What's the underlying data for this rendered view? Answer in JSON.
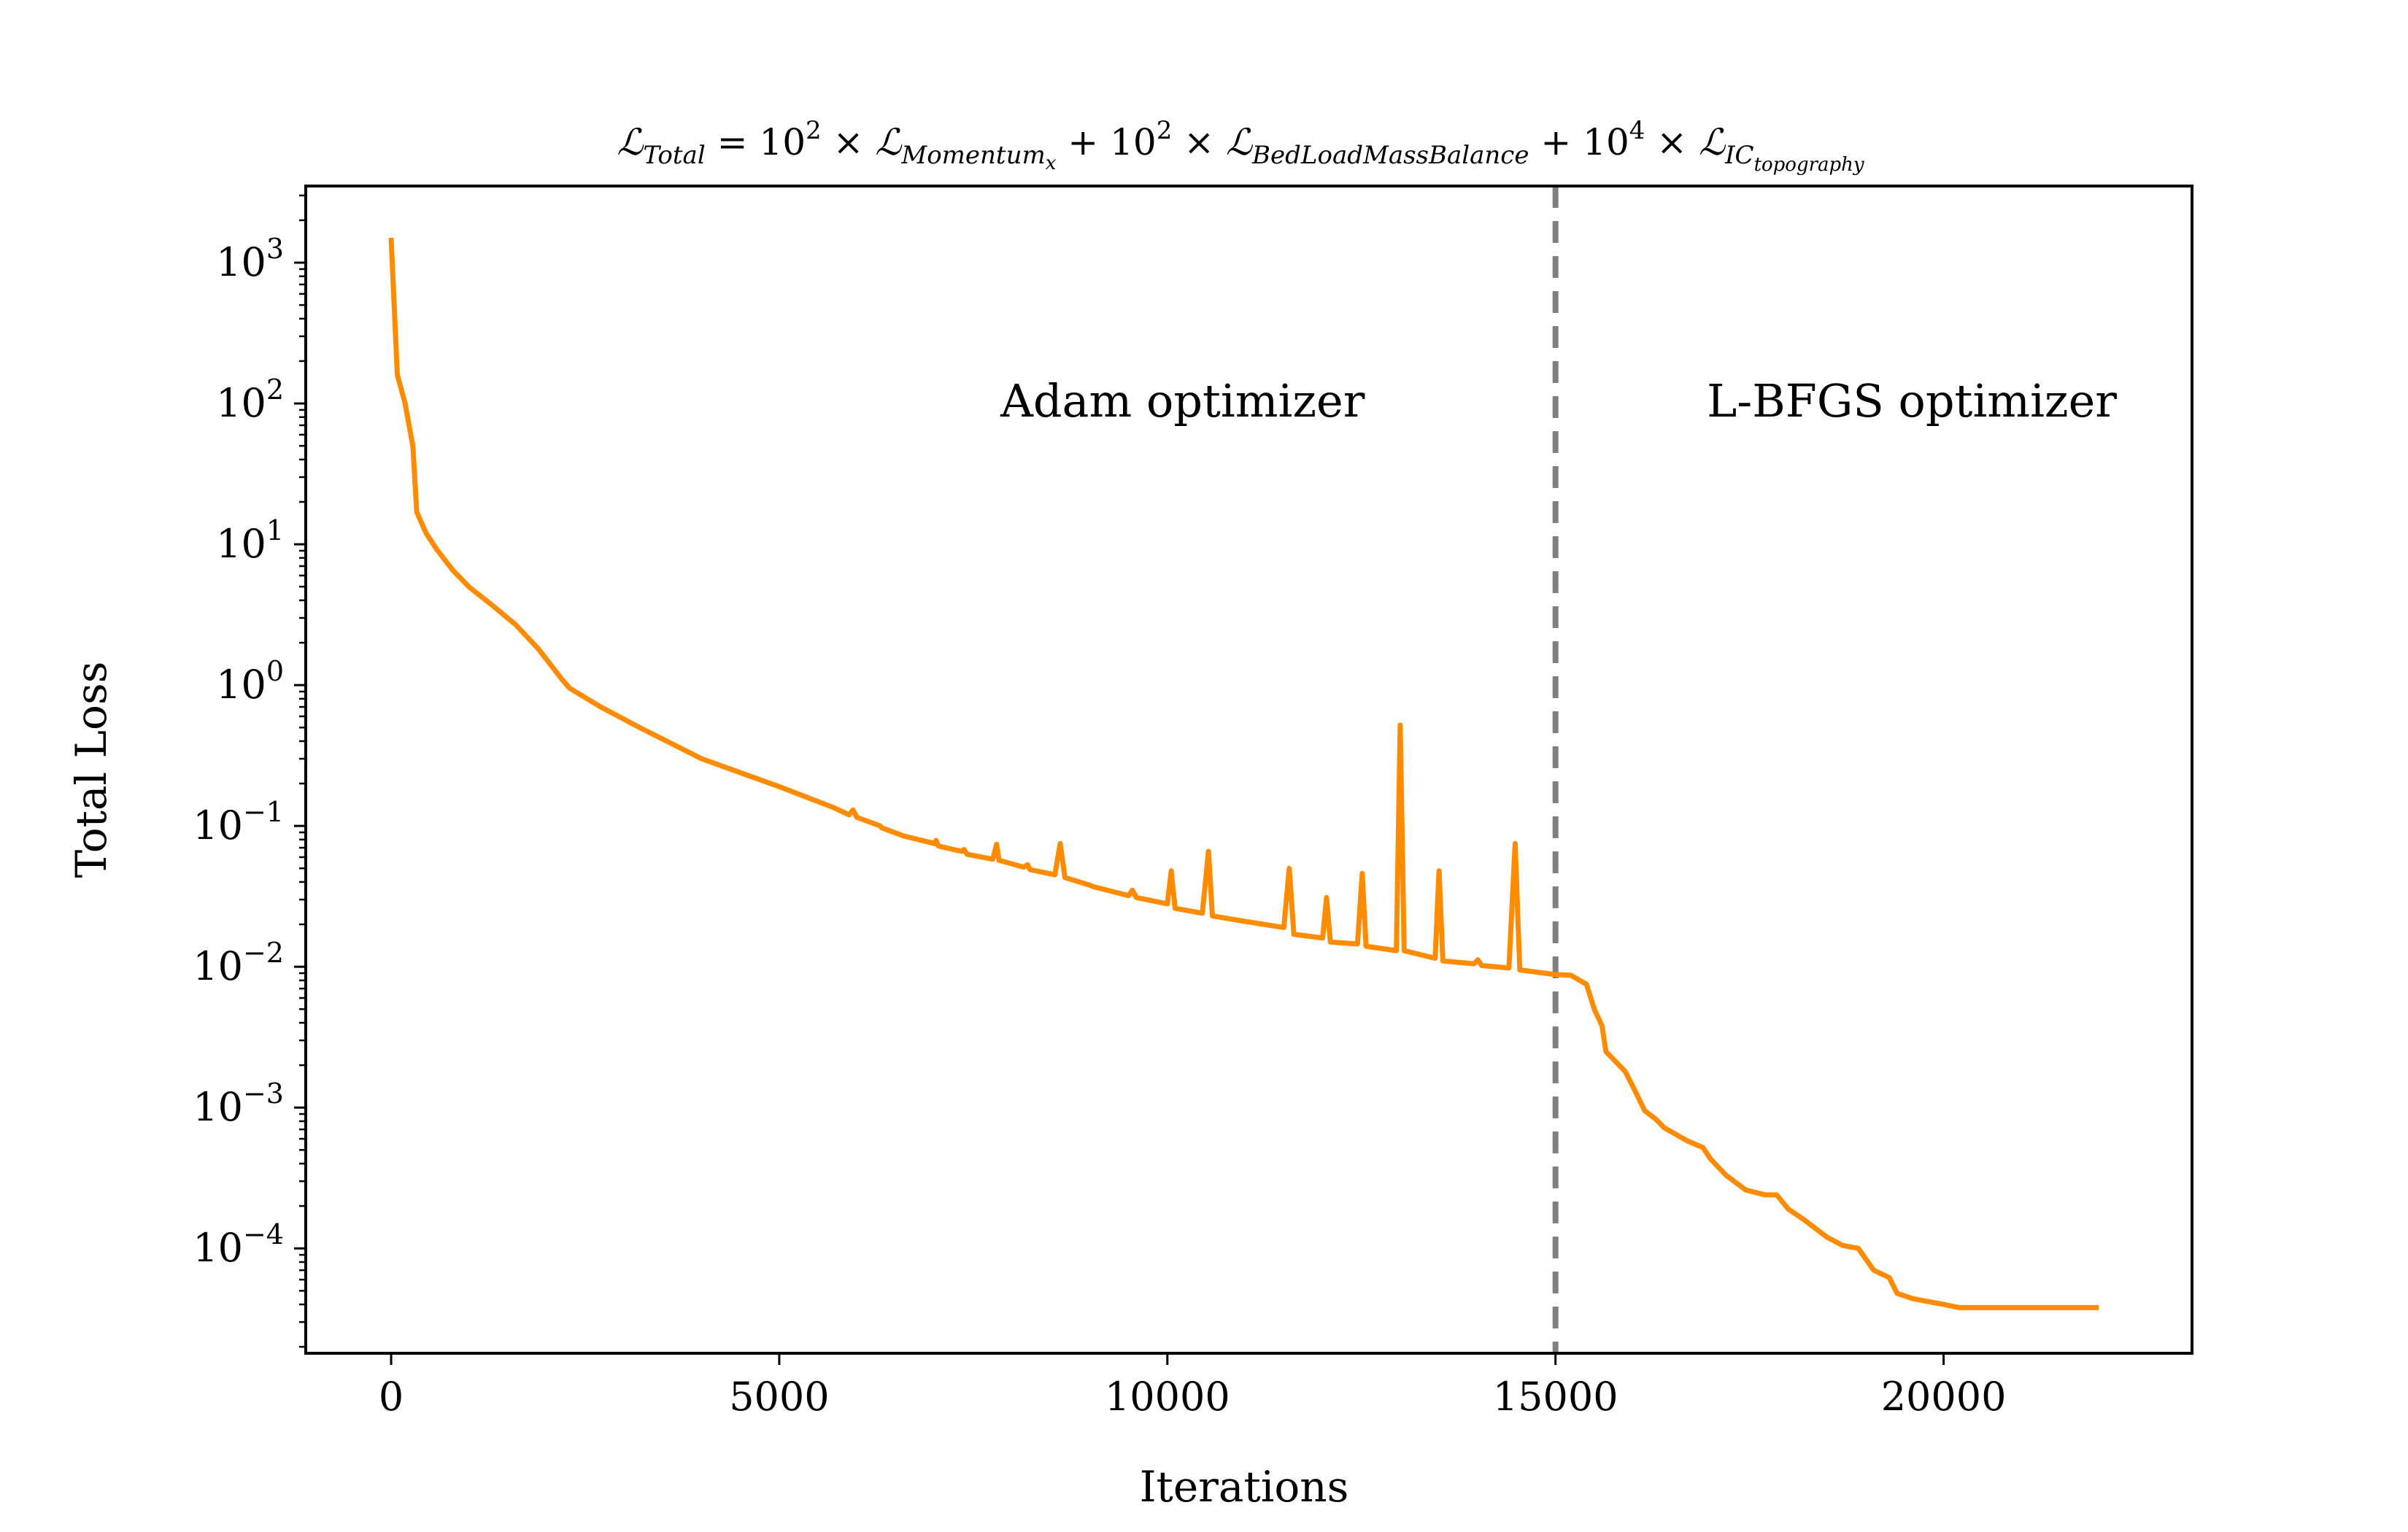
{
  "chart_data": {
    "type": "line",
    "title": "ℒ_Total = 10^2 × ℒ_Momentum_x + 10^2 × ℒ_BedLoadMassBalance + 10^4 × ℒ_IC_topography",
    "title_parts": {
      "t1_sym": "ℒ",
      "t1_sub": "Total",
      "t2": " = 10",
      "t2_sup": "2",
      "t3": " × ℒ",
      "t3_sub": "Momentum",
      "t3_subsub": "x",
      "t4": " + 10",
      "t4_sup": "2",
      "t5": " × ℒ",
      "t5_sub": "BedLoadMassBalance",
      "t6": " + 10",
      "t6_sup": "4",
      "t7": " × ℒ",
      "t7_sub": "IC",
      "t7_subsub": "topography"
    },
    "xlabel": "Iterations",
    "ylabel": "Total Loss",
    "xlim": [
      -1100,
      23200
    ],
    "ylim": [
      1.8e-05,
      3500
    ],
    "yscale": "log",
    "xticks": [
      0,
      5000,
      10000,
      15000,
      20000
    ],
    "xtick_labels": [
      "0",
      "5000",
      "10000",
      "15000",
      "20000"
    ],
    "yticks": [
      0.0001,
      0.001,
      0.01,
      0.1,
      1,
      10,
      100,
      1000
    ],
    "ytick_labels": [
      {
        "base": "10",
        "exp": "−4"
      },
      {
        "base": "10",
        "exp": "−3"
      },
      {
        "base": "10",
        "exp": "−2"
      },
      {
        "base": "10",
        "exp": "−1"
      },
      {
        "base": "10",
        "exp": "0"
      },
      {
        "base": "10",
        "exp": "1"
      },
      {
        "base": "10",
        "exp": "2"
      },
      {
        "base": "10",
        "exp": "3"
      }
    ],
    "grid": false,
    "vline": {
      "x": 15000,
      "style": "dashed",
      "color": "#808080"
    },
    "annotations": [
      {
        "text": "Adam optimizer",
        "x": 7850,
        "y": 100
      },
      {
        "text": "L-BFGS optimizer",
        "x": 16950,
        "y": 100
      }
    ],
    "series": [
      {
        "color": "#ff8c00",
        "points": [
          [
            0,
            1500
          ],
          [
            80,
            160
          ],
          [
            180,
            100
          ],
          [
            280,
            50
          ],
          [
            330,
            17
          ],
          [
            450,
            12
          ],
          [
            600,
            9
          ],
          [
            800,
            6.5
          ],
          [
            1000,
            5
          ],
          [
            1300,
            3.7
          ],
          [
            1600,
            2.7
          ],
          [
            1900,
            1.8
          ],
          [
            2200,
            1.1
          ],
          [
            2300,
            0.95
          ],
          [
            2700,
            0.7
          ],
          [
            3200,
            0.5
          ],
          [
            4000,
            0.3
          ],
          [
            5000,
            0.19
          ],
          [
            5700,
            0.135
          ],
          [
            5900,
            0.12
          ],
          [
            5950,
            0.13
          ],
          [
            6000,
            0.115
          ],
          [
            6300,
            0.1
          ],
          [
            6320,
            0.097
          ],
          [
            6600,
            0.085
          ],
          [
            7000,
            0.075
          ],
          [
            7020,
            0.079
          ],
          [
            7050,
            0.072
          ],
          [
            7350,
            0.066
          ],
          [
            7380,
            0.068
          ],
          [
            7420,
            0.063
          ],
          [
            7750,
            0.058
          ],
          [
            7800,
            0.074
          ],
          [
            7830,
            0.057
          ],
          [
            8150,
            0.051
          ],
          [
            8200,
            0.053
          ],
          [
            8230,
            0.049
          ],
          [
            8550,
            0.045
          ],
          [
            8620,
            0.075
          ],
          [
            8680,
            0.043
          ],
          [
            9000,
            0.038
          ],
          [
            9050,
            0.037
          ],
          [
            9500,
            0.032
          ],
          [
            9550,
            0.035
          ],
          [
            9600,
            0.031
          ],
          [
            10000,
            0.028
          ],
          [
            10050,
            0.048
          ],
          [
            10100,
            0.026
          ],
          [
            10450,
            0.024
          ],
          [
            10530,
            0.066
          ],
          [
            10580,
            0.023
          ],
          [
            11000,
            0.021
          ],
          [
            11500,
            0.019
          ],
          [
            11570,
            0.05
          ],
          [
            11630,
            0.017
          ],
          [
            12000,
            0.016
          ],
          [
            12050,
            0.031
          ],
          [
            12100,
            0.015
          ],
          [
            12450,
            0.0145
          ],
          [
            12510,
            0.046
          ],
          [
            12560,
            0.014
          ],
          [
            12950,
            0.013
          ],
          [
            13000,
            0.52
          ],
          [
            13050,
            0.013
          ],
          [
            13450,
            0.0115
          ],
          [
            13500,
            0.048
          ],
          [
            13550,
            0.011
          ],
          [
            13950,
            0.0105
          ],
          [
            14000,
            0.0112
          ],
          [
            14050,
            0.0102
          ],
          [
            14400,
            0.0098
          ],
          [
            14480,
            0.075
          ],
          [
            14540,
            0.0095
          ],
          [
            14800,
            0.0091
          ],
          [
            15000,
            0.0088
          ],
          [
            15200,
            0.0087
          ],
          [
            15400,
            0.0075
          ],
          [
            15500,
            0.005
          ],
          [
            15600,
            0.0038
          ],
          [
            15650,
            0.0025
          ],
          [
            15900,
            0.0018
          ],
          [
            16000,
            0.0014
          ],
          [
            16150,
            0.00095
          ],
          [
            16300,
            0.00082
          ],
          [
            16400,
            0.00072
          ],
          [
            16700,
            0.00058
          ],
          [
            16900,
            0.00052
          ],
          [
            17000,
            0.00043
          ],
          [
            17200,
            0.00033
          ],
          [
            17450,
            0.00026
          ],
          [
            17700,
            0.00024
          ],
          [
            17850,
            0.00024
          ],
          [
            18000,
            0.00019
          ],
          [
            18200,
            0.00016
          ],
          [
            18500,
            0.00012
          ],
          [
            18700,
            0.000105
          ],
          [
            18900,
            0.0001
          ],
          [
            19100,
            7e-05
          ],
          [
            19300,
            6.2e-05
          ],
          [
            19400,
            4.8e-05
          ],
          [
            19600,
            4.4e-05
          ],
          [
            20000,
            4e-05
          ],
          [
            20200,
            3.8e-05
          ],
          [
            22000,
            3.8e-05
          ]
        ]
      }
    ]
  }
}
